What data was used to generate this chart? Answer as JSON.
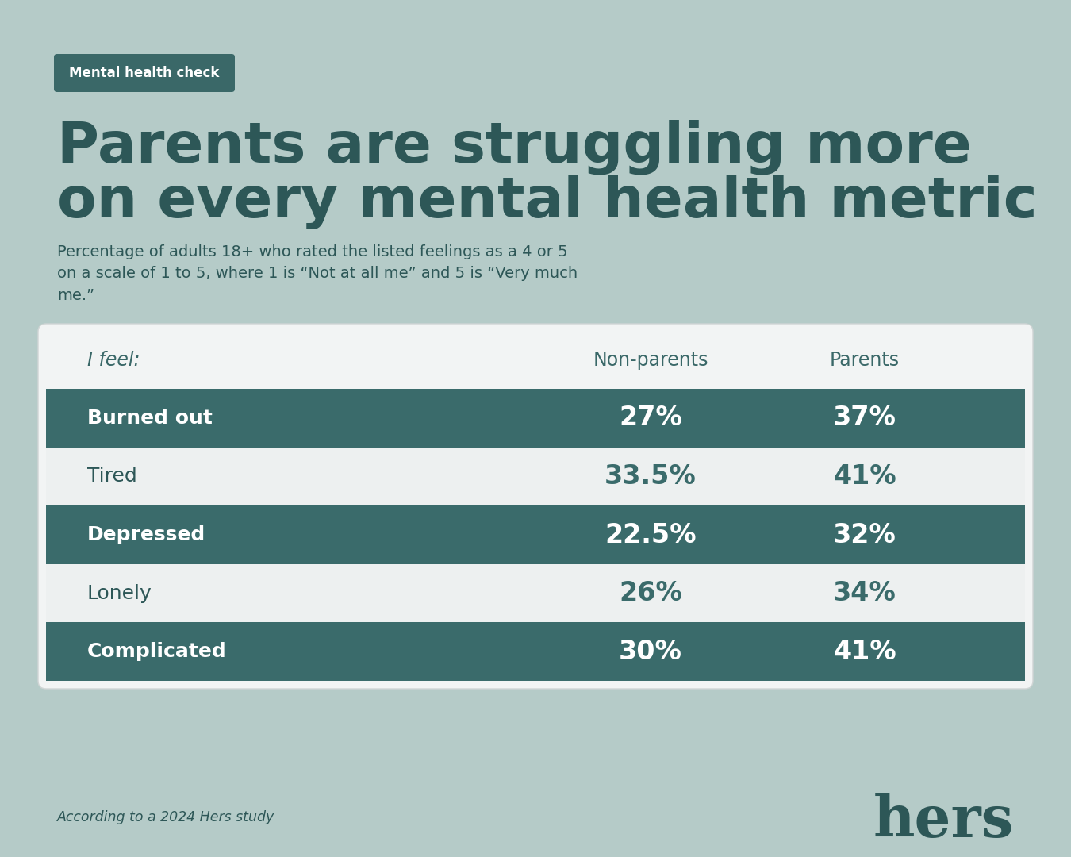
{
  "background_color": "#b5cbc8",
  "badge_text": "Mental health check",
  "badge_bg": "#3a6868",
  "badge_text_color": "#ffffff",
  "title_line1": "Parents are struggling more",
  "title_line2": "on every mental health metric",
  "title_color": "#2d5757",
  "subtitle": "Percentage of adults 18+ who rated the listed feelings as a 4 or 5\non a scale of 1 to 5, where 1 is “Not at all me” and 5 is “Very much\nme.”",
  "subtitle_color": "#2d5757",
  "table_bg": "#f2f4f4",
  "col_header_feel": "I feel:",
  "col_header_nonparents": "Non-parents",
  "col_header_parents": "Parents",
  "col_header_text_color": "#3a6868",
  "rows": [
    {
      "label": "Burned out",
      "nonparents": "27%",
      "parents": "37%",
      "dark": true
    },
    {
      "label": "Tired",
      "nonparents": "33.5%",
      "parents": "41%",
      "dark": false
    },
    {
      "label": "Depressed",
      "nonparents": "22.5%",
      "parents": "32%",
      "dark": true
    },
    {
      "label": "Lonely",
      "nonparents": "26%",
      "parents": "34%",
      "dark": false
    },
    {
      "label": "Complicated",
      "nonparents": "30%",
      "parents": "41%",
      "dark": true
    }
  ],
  "dark_row_bg": "#3a6b6b",
  "light_row_bg": "#edf0f0",
  "dark_row_text": "#ffffff",
  "light_row_label_color": "#2d5757",
  "light_row_value_color": "#3a6b6b",
  "footer_text": "According to a 2024 Hers study",
  "footer_color": "#2d5757",
  "hers_color": "#2d5757"
}
